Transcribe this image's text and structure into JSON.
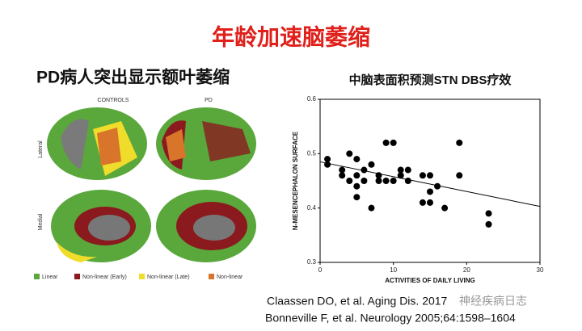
{
  "title": "年龄加速脑萎缩",
  "left_panel": {
    "title": "PD病人突出显示额叶萎缩",
    "columns": [
      "CONTROLS",
      "PD"
    ],
    "rows": [
      "Lateral",
      "Medial"
    ],
    "legend": [
      "Linear",
      "Non-linear (Early)",
      "Non-linear (Late)",
      "Non-linear"
    ]
  },
  "chart_data": {
    "type": "scatter",
    "title": "中脑表面积预测STN DBS疗效",
    "x_label": "ACTIVITIES OF DAILY LIVING",
    "y_label": "N-MESENCEPHALON SURFACE",
    "x": [
      1,
      1,
      3,
      3,
      4,
      4,
      5,
      5,
      5,
      5,
      6,
      6,
      7,
      7,
      8,
      8,
      9,
      9,
      10,
      10,
      11,
      11,
      12,
      12,
      14,
      14,
      15,
      15,
      15,
      16,
      17,
      19,
      19,
      23,
      23
    ],
    "values": [
      0.49,
      0.48,
      0.47,
      0.46,
      0.5,
      0.45,
      0.49,
      0.46,
      0.44,
      0.42,
      0.47,
      0.45,
      0.48,
      0.4,
      0.46,
      0.45,
      0.52,
      0.45,
      0.52,
      0.45,
      0.47,
      0.46,
      0.47,
      0.45,
      0.46,
      0.41,
      0.46,
      0.43,
      0.41,
      0.44,
      0.4,
      0.52,
      0.46,
      0.39,
      0.37
    ],
    "color": "#000000",
    "trend_line": {
      "x": [
        0,
        30
      ],
      "values": [
        0.485,
        0.403
      ]
    },
    "xlim": [
      0,
      30
    ],
    "xticks": [
      0,
      10,
      20,
      30
    ],
    "ylim": [
      0.3,
      0.6
    ],
    "yticks": [
      0.3,
      0.4,
      0.5,
      0.6
    ]
  },
  "references": [
    "Claassen DO, et al. Aging Dis. 2017",
    "Bonneville F, et al. Neurology 2005;64:1598–1604"
  ],
  "watermark": "神经疾病日志"
}
